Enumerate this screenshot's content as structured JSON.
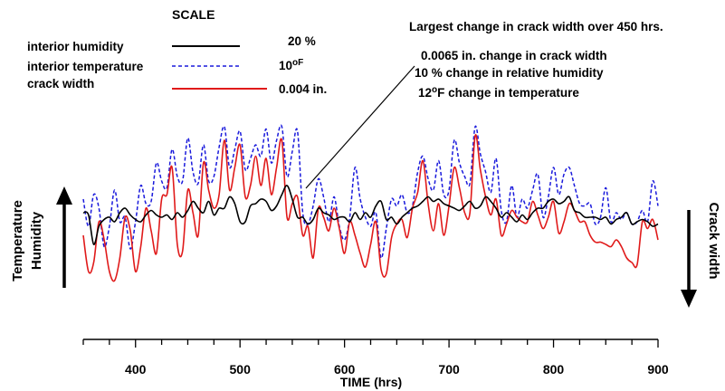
{
  "chart_data": {
    "type": "line",
    "title": "",
    "xlabel": "TIME (hrs)",
    "left_axis_label": [
      "Temperature",
      "Humidity"
    ],
    "right_axis_label": "Crack width",
    "xlim": [
      350,
      900
    ],
    "x_ticks": [
      400,
      500,
      600,
      700,
      800,
      900
    ],
    "grid": false,
    "scale_box": {
      "title": "SCALE",
      "entries": [
        {
          "name": "interior humidity",
          "scale": "20 %",
          "color": "#000000",
          "style": "solid"
        },
        {
          "name": "interior temperature",
          "scale": "10°F",
          "scale_value": "10",
          "scale_unit": "oF",
          "color": "#1a1adc",
          "style": "dashed"
        },
        {
          "name": "crack width",
          "scale": "0.004 in.",
          "color": "#e01a1a",
          "style": "solid"
        }
      ]
    },
    "annotation": {
      "heading": "Largest change in crack width over 450 hrs.",
      "lines": [
        {
          "text": "0.0065 in. change in crack width"
        },
        {
          "text": "10 % change in relative humidity"
        },
        {
          "text_pre": "12",
          "text_sup": "o",
          "text_mid": "F change in temperature"
        }
      ],
      "points_to_x": 560
    },
    "series": [
      {
        "name": "interior humidity",
        "color": "#000000",
        "style": "solid",
        "x": [
          350,
          355,
          360,
          365,
          370,
          375,
          380,
          385,
          390,
          395,
          400,
          405,
          410,
          415,
          420,
          425,
          430,
          435,
          440,
          445,
          450,
          455,
          460,
          465,
          470,
          475,
          480,
          485,
          490,
          495,
          500,
          505,
          510,
          515,
          520,
          525,
          530,
          535,
          540,
          545,
          550,
          555,
          560,
          565,
          570,
          575,
          580,
          585,
          590,
          595,
          600,
          605,
          610,
          615,
          620,
          625,
          630,
          635,
          640,
          645,
          650,
          655,
          660,
          665,
          670,
          675,
          680,
          685,
          690,
          695,
          700,
          705,
          710,
          715,
          720,
          725,
          730,
          735,
          740,
          745,
          750,
          755,
          760,
          765,
          770,
          775,
          780,
          785,
          790,
          795,
          800,
          805,
          810,
          815,
          820,
          825,
          830,
          835,
          840,
          845,
          850,
          855,
          860,
          865,
          870,
          875,
          880,
          885,
          890,
          895,
          900
        ],
        "y": [
          50,
          49,
          36,
          44,
          47,
          48,
          46,
          50,
          52,
          49,
          47,
          46,
          49,
          51,
          49,
          48,
          49,
          47,
          50,
          48,
          51,
          55,
          52,
          50,
          55,
          49,
          52,
          52,
          57,
          54,
          46,
          46,
          53,
          54,
          56,
          55,
          51,
          53,
          58,
          62,
          56,
          48,
          48,
          45,
          47,
          52,
          50,
          49,
          47,
          48,
          48,
          46,
          50,
          47,
          50,
          48,
          53,
          55,
          47,
          48,
          45,
          48,
          50,
          52,
          53,
          55,
          57,
          55,
          56,
          54,
          53,
          52,
          51,
          53,
          55,
          52,
          53,
          57,
          55,
          52,
          48,
          50,
          48,
          46,
          49,
          47,
          50,
          52,
          52,
          55,
          56,
          54,
          55,
          57,
          51,
          50,
          48,
          48,
          48,
          47,
          48,
          45,
          47,
          48,
          50,
          45,
          46,
          47,
          46,
          44,
          45
        ]
      },
      {
        "name": "interior temperature",
        "color": "#1a1adc",
        "style": "dashed",
        "x": [
          350,
          355,
          360,
          365,
          370,
          375,
          380,
          385,
          390,
          395,
          400,
          405,
          410,
          415,
          420,
          425,
          430,
          435,
          440,
          445,
          450,
          455,
          460,
          465,
          470,
          475,
          480,
          485,
          490,
          495,
          500,
          505,
          510,
          515,
          520,
          525,
          530,
          535,
          540,
          545,
          550,
          555,
          560,
          565,
          570,
          575,
          580,
          585,
          590,
          595,
          600,
          605,
          610,
          615,
          620,
          625,
          630,
          635,
          640,
          645,
          650,
          655,
          660,
          665,
          670,
          675,
          680,
          685,
          690,
          695,
          700,
          705,
          710,
          715,
          720,
          725,
          730,
          735,
          740,
          745,
          750,
          755,
          760,
          765,
          770,
          775,
          780,
          785,
          790,
          795,
          800,
          805,
          810,
          815,
          820,
          825,
          830,
          835,
          840,
          845,
          850,
          855,
          860,
          865,
          870,
          875,
          880,
          885,
          890,
          895,
          900
        ],
        "y": [
          56,
          44,
          58,
          52,
          35,
          44,
          60,
          46,
          48,
          34,
          46,
          62,
          54,
          55,
          72,
          64,
          61,
          78,
          66,
          64,
          83,
          68,
          63,
          80,
          64,
          66,
          79,
          88,
          70,
          78,
          86,
          69,
          74,
          80,
          75,
          87,
          72,
          82,
          88,
          66,
          77,
          86,
          50,
          45,
          53,
          65,
          57,
          46,
          57,
          44,
          38,
          48,
          70,
          56,
          48,
          44,
          50,
          30,
          43,
          56,
          53,
          58,
          50,
          53,
          68,
          75,
          65,
          60,
          73,
          58,
          60,
          82,
          72,
          66,
          63,
          88,
          76,
          68,
          59,
          74,
          51,
          46,
          62,
          48,
          56,
          52,
          60,
          67,
          48,
          57,
          70,
          58,
          67,
          70,
          62,
          54,
          53,
          54,
          45,
          48,
          61,
          46,
          50,
          47,
          50,
          45,
          46,
          51,
          46,
          64,
          53
        ]
      },
      {
        "name": "crack width",
        "color": "#e01a1a",
        "style": "solid",
        "x": [
          350,
          355,
          360,
          365,
          370,
          375,
          380,
          385,
          390,
          395,
          400,
          405,
          410,
          415,
          420,
          425,
          430,
          435,
          440,
          445,
          450,
          455,
          460,
          465,
          470,
          475,
          480,
          485,
          490,
          495,
          500,
          505,
          510,
          515,
          520,
          525,
          530,
          535,
          540,
          545,
          550,
          555,
          560,
          565,
          570,
          575,
          580,
          585,
          590,
          595,
          600,
          605,
          610,
          615,
          620,
          625,
          630,
          635,
          640,
          645,
          650,
          655,
          660,
          665,
          670,
          675,
          680,
          685,
          690,
          695,
          700,
          705,
          710,
          715,
          720,
          725,
          730,
          735,
          740,
          745,
          750,
          755,
          760,
          765,
          770,
          775,
          780,
          785,
          790,
          795,
          800,
          805,
          810,
          815,
          820,
          825,
          830,
          835,
          840,
          845,
          850,
          855,
          860,
          865,
          870,
          875,
          880,
          885,
          890,
          895,
          900
        ],
        "y": [
          40,
          24,
          28,
          46,
          38,
          24,
          20,
          30,
          48,
          42,
          24,
          35,
          52,
          42,
          32,
          56,
          58,
          70,
          36,
          33,
          60,
          50,
          40,
          72,
          60,
          52,
          58,
          82,
          60,
          70,
          80,
          57,
          62,
          75,
          62,
          74,
          58,
          70,
          82,
          48,
          54,
          57,
          40,
          44,
          30,
          52,
          48,
          42,
          52,
          43,
          32,
          46,
          40,
          32,
          26,
          36,
          46,
          25,
          23,
          39,
          45,
          47,
          39,
          52,
          59,
          73,
          54,
          42,
          54,
          40,
          53,
          70,
          61,
          50,
          50,
          84,
          69,
          57,
          49,
          56,
          40,
          45,
          51,
          48,
          46,
          46,
          55,
          49,
          43,
          48,
          55,
          41,
          46,
          54,
          51,
          46,
          46,
          40,
          37,
          37,
          36,
          35,
          38,
          35,
          30,
          28,
          27,
          46,
          43,
          47,
          38
        ]
      }
    ]
  }
}
